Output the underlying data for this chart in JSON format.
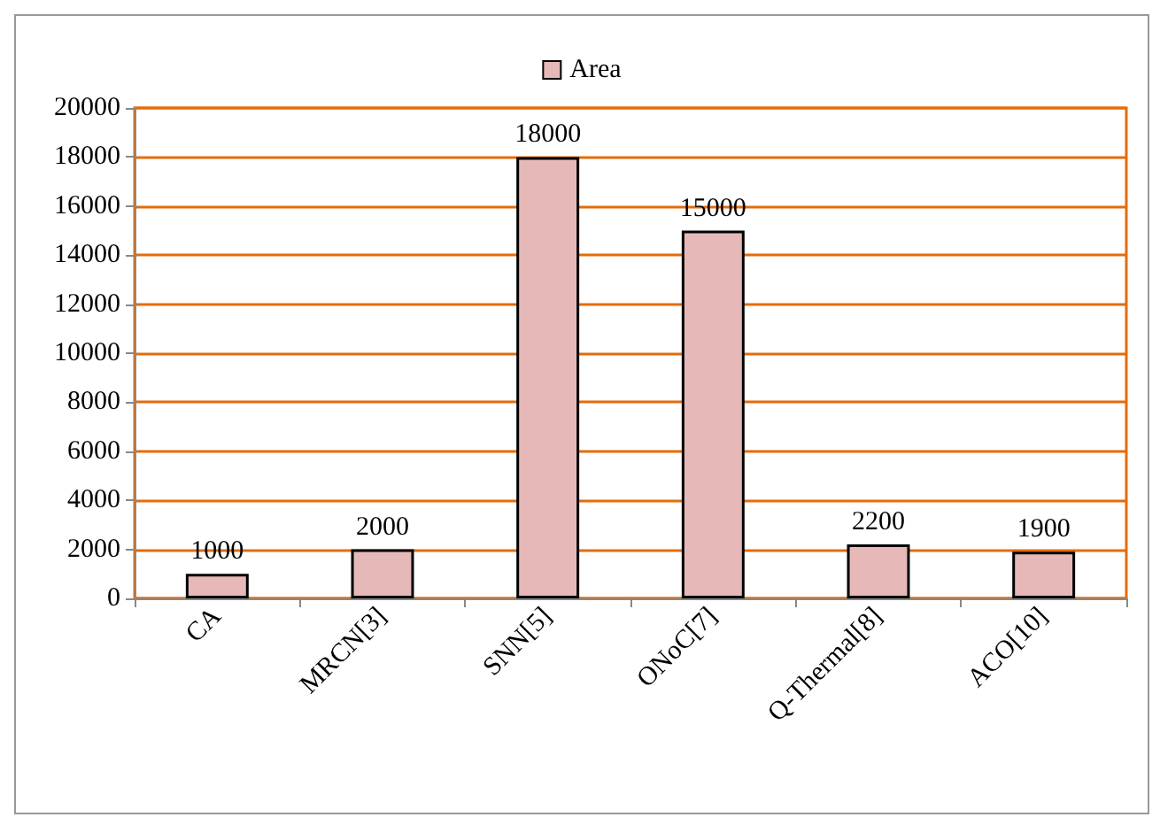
{
  "chart_data": {
    "type": "bar",
    "categories": [
      "CA",
      "MRCN[3]",
      "SNN[5]",
      "ONoC[7]",
      "Q-Thermal[8]",
      "ACO[10]"
    ],
    "series": [
      {
        "name": "Area",
        "color": "#e6b9b8",
        "values": [
          1000,
          2000,
          18000,
          15000,
          2200,
          1900
        ]
      }
    ],
    "ylim": [
      0,
      20000
    ],
    "yticks": [
      0,
      2000,
      4000,
      6000,
      8000,
      10000,
      12000,
      14000,
      16000,
      18000,
      20000
    ],
    "grid": "y",
    "legend": "top",
    "data_labels": true
  }
}
